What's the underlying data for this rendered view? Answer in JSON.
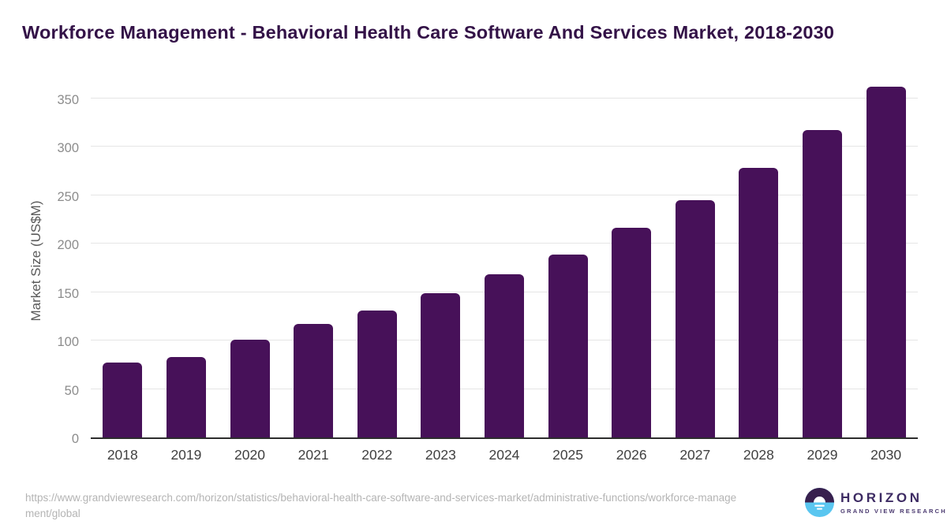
{
  "title": "Workforce Management - Behavioral Health Care Software And Services Market, 2018-2030",
  "chart_data": {
    "type": "bar",
    "title": "Workforce Management - Behavioral Health Care Software And Services Market, 2018-2030",
    "categories": [
      "2018",
      "2019",
      "2020",
      "2021",
      "2022",
      "2023",
      "2024",
      "2025",
      "2026",
      "2027",
      "2028",
      "2029",
      "2030"
    ],
    "values": [
      77,
      83,
      101,
      117,
      131,
      149,
      168,
      189,
      216,
      245,
      278,
      317,
      362
    ],
    "xlabel": "",
    "ylabel": "Market Size (US$M)",
    "ylim": [
      0,
      368
    ],
    "yticks": [
      0,
      50,
      100,
      150,
      200,
      250,
      300,
      350
    ],
    "grid": true,
    "legend": false,
    "bar_color": "#471159"
  },
  "colors": {
    "bar": "#471159",
    "title_text": "#331247",
    "axis_line": "#2d2d2d",
    "gridline": "#e5e5e5",
    "logo_purple": "#38204e",
    "logo_blue": "#5ac6f0"
  },
  "footer": {
    "source_url": "https://www.grandviewresearch.com/horizon/statistics/behavioral-health-care-software-and-services-market/administrative-functions/workforce-management/global",
    "logo": {
      "name": "HORIZON",
      "subtitle": "GRAND VIEW RESEARCH"
    }
  }
}
